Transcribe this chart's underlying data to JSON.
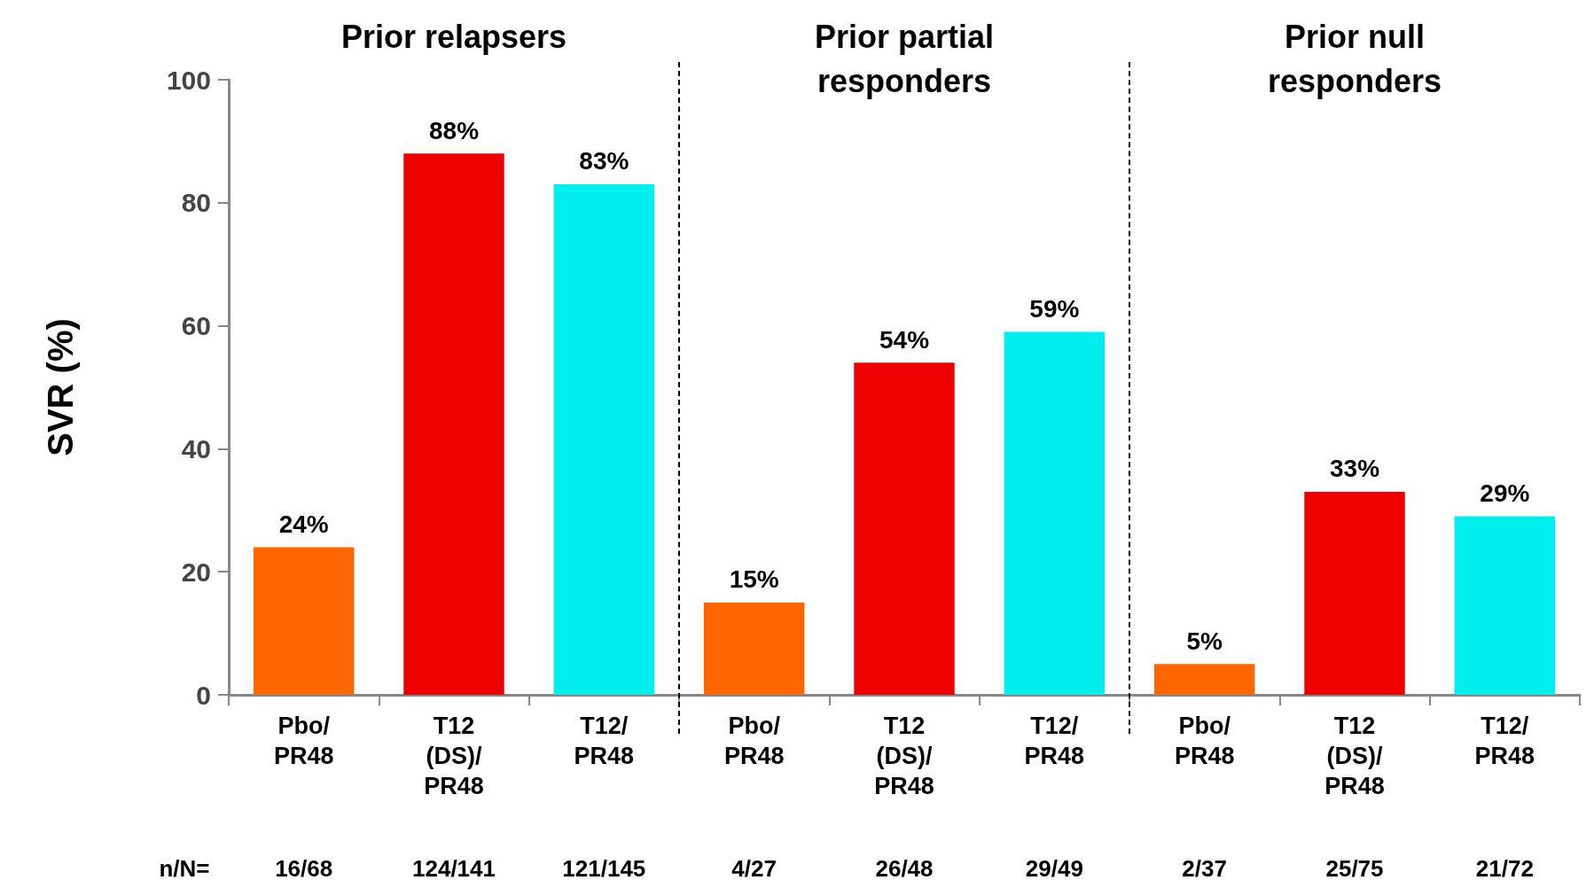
{
  "chart_data": {
    "type": "bar",
    "ylabel": "SVR (%)",
    "categories": [
      "Pbo/\nPR48",
      "T12\n(DS)/\nPR48",
      "T12/\nPR48",
      "Pbo/\nPR48",
      "T12\n(DS)/\nPR48",
      "T12/\nPR48",
      "Pbo/\nPR48",
      "T12\n(DS)/\nPR48",
      "T12/\nPR48"
    ],
    "values": [
      24,
      88,
      83,
      15,
      54,
      59,
      5,
      33,
      29
    ],
    "colors": [
      "#ff6600",
      "#ee0000",
      "#00eeee",
      "#ff6600",
      "#ee0000",
      "#00eeee",
      "#ff6600",
      "#ee0000",
      "#00eeee"
    ],
    "value_labels": [
      "24%",
      "88%",
      "83%",
      "15%",
      "54%",
      "59%",
      "5%",
      "33%",
      "29%"
    ],
    "ylim": [
      0,
      100
    ],
    "yticks": [
      0,
      20,
      40,
      60,
      80,
      100
    ],
    "annotations": [
      "Prior relapsers",
      "Prior partial\nresponders",
      "Prior null\nresponders",
      "n/N=",
      "16/68",
      "124/141",
      "121/145",
      "4/27",
      "26/48",
      "29/49",
      "2/37",
      "25/75",
      "21/72"
    ]
  }
}
